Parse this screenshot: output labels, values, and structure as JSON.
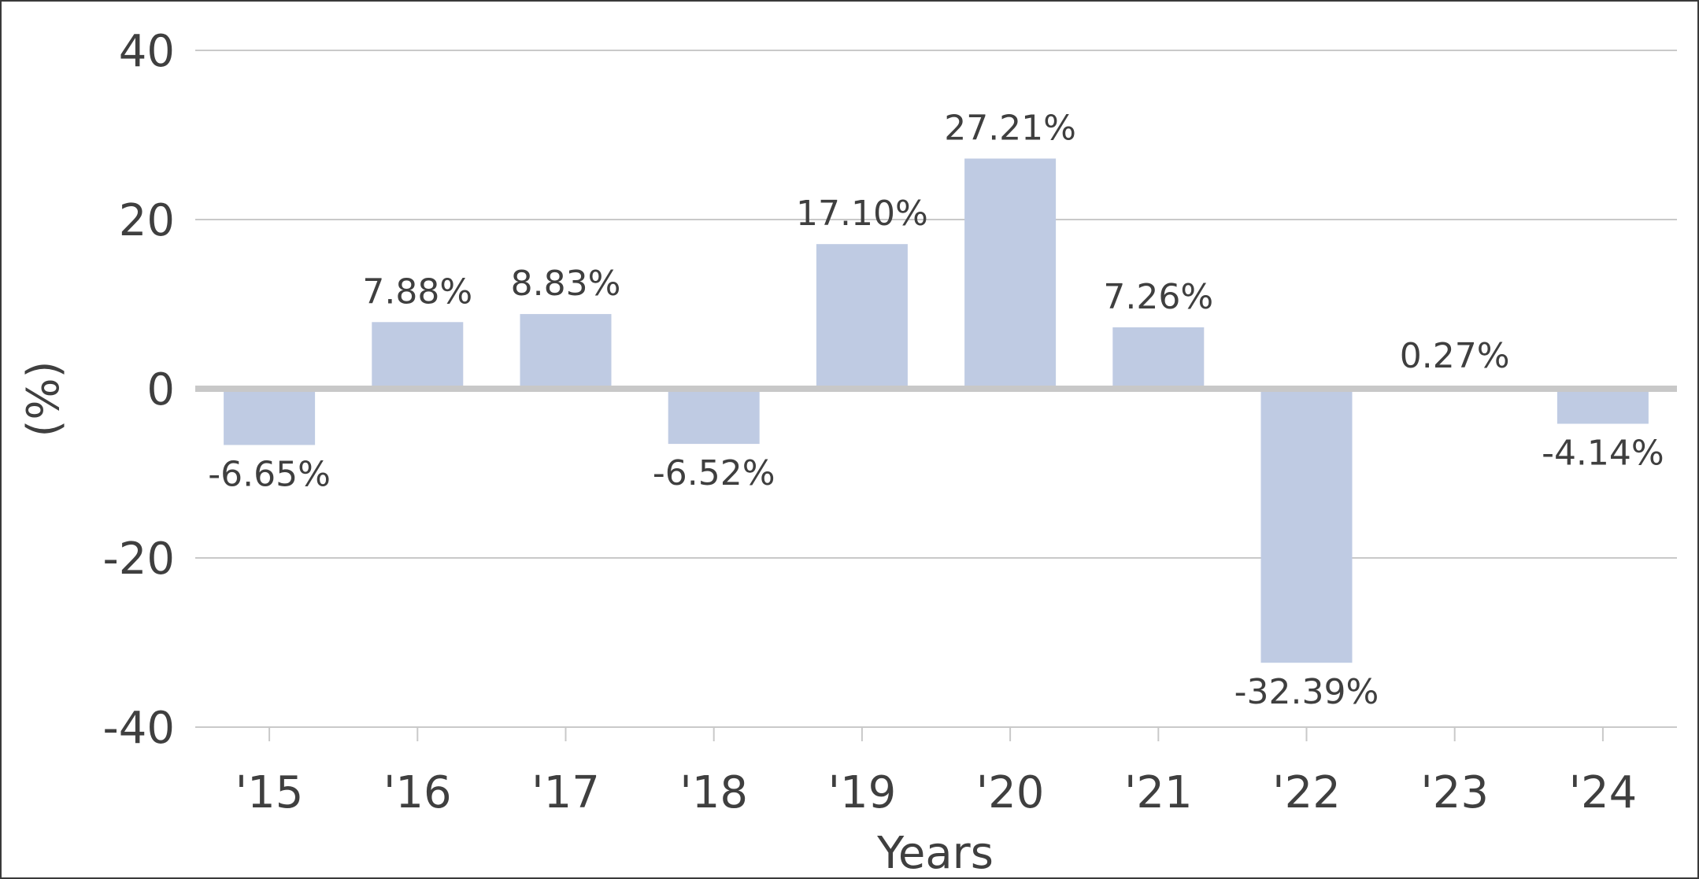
{
  "chart_data": {
    "type": "bar",
    "categories": [
      "'15",
      "'16",
      "'17",
      "'18",
      "'19",
      "'20",
      "'21",
      "'22",
      "'23",
      "'24"
    ],
    "values": [
      -6.65,
      7.88,
      8.83,
      -6.52,
      17.1,
      27.21,
      7.26,
      -32.39,
      0.27,
      -4.14
    ],
    "data_labels": [
      "-6.65%",
      "7.88%",
      "8.83%",
      "-6.52%",
      "17.10%",
      "27.21%",
      "7.26%",
      "-32.39%",
      "0.27%",
      "-4.14%"
    ],
    "xlabel": "Years",
    "ylabel": "(%)",
    "ylim": [
      -40,
      40
    ],
    "yticks": [
      40,
      20,
      0,
      -20,
      -40
    ],
    "grid": true,
    "bar_color": "#bfcbe3",
    "zero_line_color": "#c8c8c8",
    "grid_color": "#c9c9c9"
  }
}
